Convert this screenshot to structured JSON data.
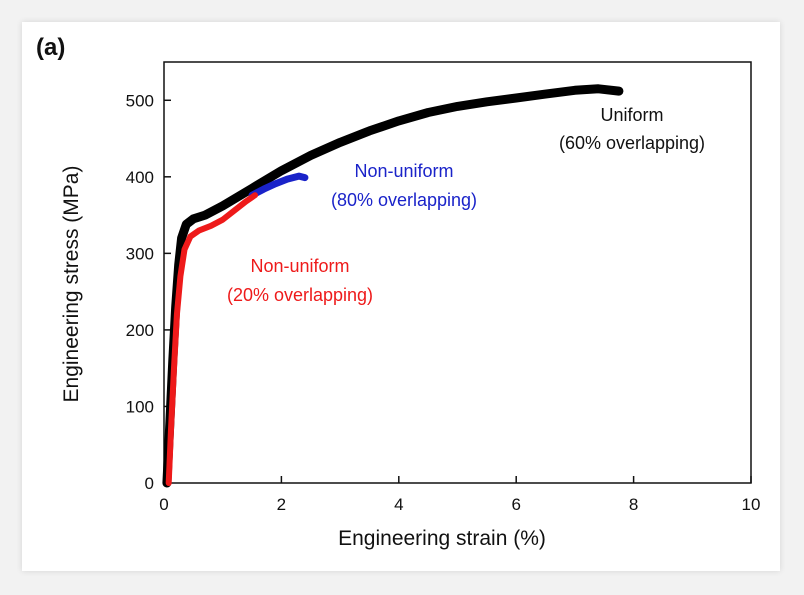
{
  "chart_data": {
    "type": "line",
    "panel_label": "(a)",
    "xlabel": "Engineering strain (%)",
    "ylabel": "Engineering stress (MPa)",
    "xlim": [
      0,
      10
    ],
    "ylim": [
      0,
      550
    ],
    "x_ticks": [
      0,
      2,
      4,
      6,
      8,
      10
    ],
    "y_ticks": [
      0,
      100,
      200,
      300,
      400,
      500
    ],
    "grid": false,
    "series": [
      {
        "name": "Uniform (60% overlapping)",
        "color": "#000000",
        "points": [
          [
            0.05,
            0
          ],
          [
            0.1,
            80
          ],
          [
            0.15,
            160
          ],
          [
            0.2,
            230
          ],
          [
            0.25,
            285
          ],
          [
            0.3,
            320
          ],
          [
            0.38,
            338
          ],
          [
            0.5,
            345
          ],
          [
            0.7,
            350
          ],
          [
            1.0,
            362
          ],
          [
            1.5,
            385
          ],
          [
            2.0,
            408
          ],
          [
            2.5,
            428
          ],
          [
            3.0,
            445
          ],
          [
            3.5,
            460
          ],
          [
            4.0,
            473
          ],
          [
            4.5,
            484
          ],
          [
            5.0,
            492
          ],
          [
            5.5,
            498
          ],
          [
            6.0,
            503
          ],
          [
            6.5,
            508
          ],
          [
            7.0,
            513
          ],
          [
            7.4,
            515
          ],
          [
            7.75,
            512
          ]
        ]
      },
      {
        "name": "Non-uniform (80% overlapping)",
        "color": "#1a23c9",
        "points": [
          [
            1.5,
            376
          ],
          [
            1.7,
            384
          ],
          [
            1.9,
            391
          ],
          [
            2.1,
            397
          ],
          [
            2.3,
            401
          ],
          [
            2.4,
            399
          ]
        ]
      },
      {
        "name": "Non-uniform (20% overlapping)",
        "color": "#ee1a1a",
        "points": [
          [
            0.08,
            0
          ],
          [
            0.12,
            70
          ],
          [
            0.17,
            150
          ],
          [
            0.22,
            220
          ],
          [
            0.28,
            270
          ],
          [
            0.35,
            305
          ],
          [
            0.45,
            322
          ],
          [
            0.6,
            330
          ],
          [
            0.8,
            336
          ],
          [
            1.0,
            344
          ],
          [
            1.2,
            356
          ],
          [
            1.4,
            368
          ],
          [
            1.55,
            376
          ]
        ]
      }
    ],
    "annotations": [
      {
        "line1": "Uniform",
        "line2": "(60% overlapping)",
        "color": "#111111"
      },
      {
        "line1": "Non-uniform",
        "line2": "(80% overlapping)",
        "color": "#1a23c9"
      },
      {
        "line1": "Non-uniform",
        "line2": "(20% overlapping)",
        "color": "#ee1a1a"
      }
    ]
  }
}
